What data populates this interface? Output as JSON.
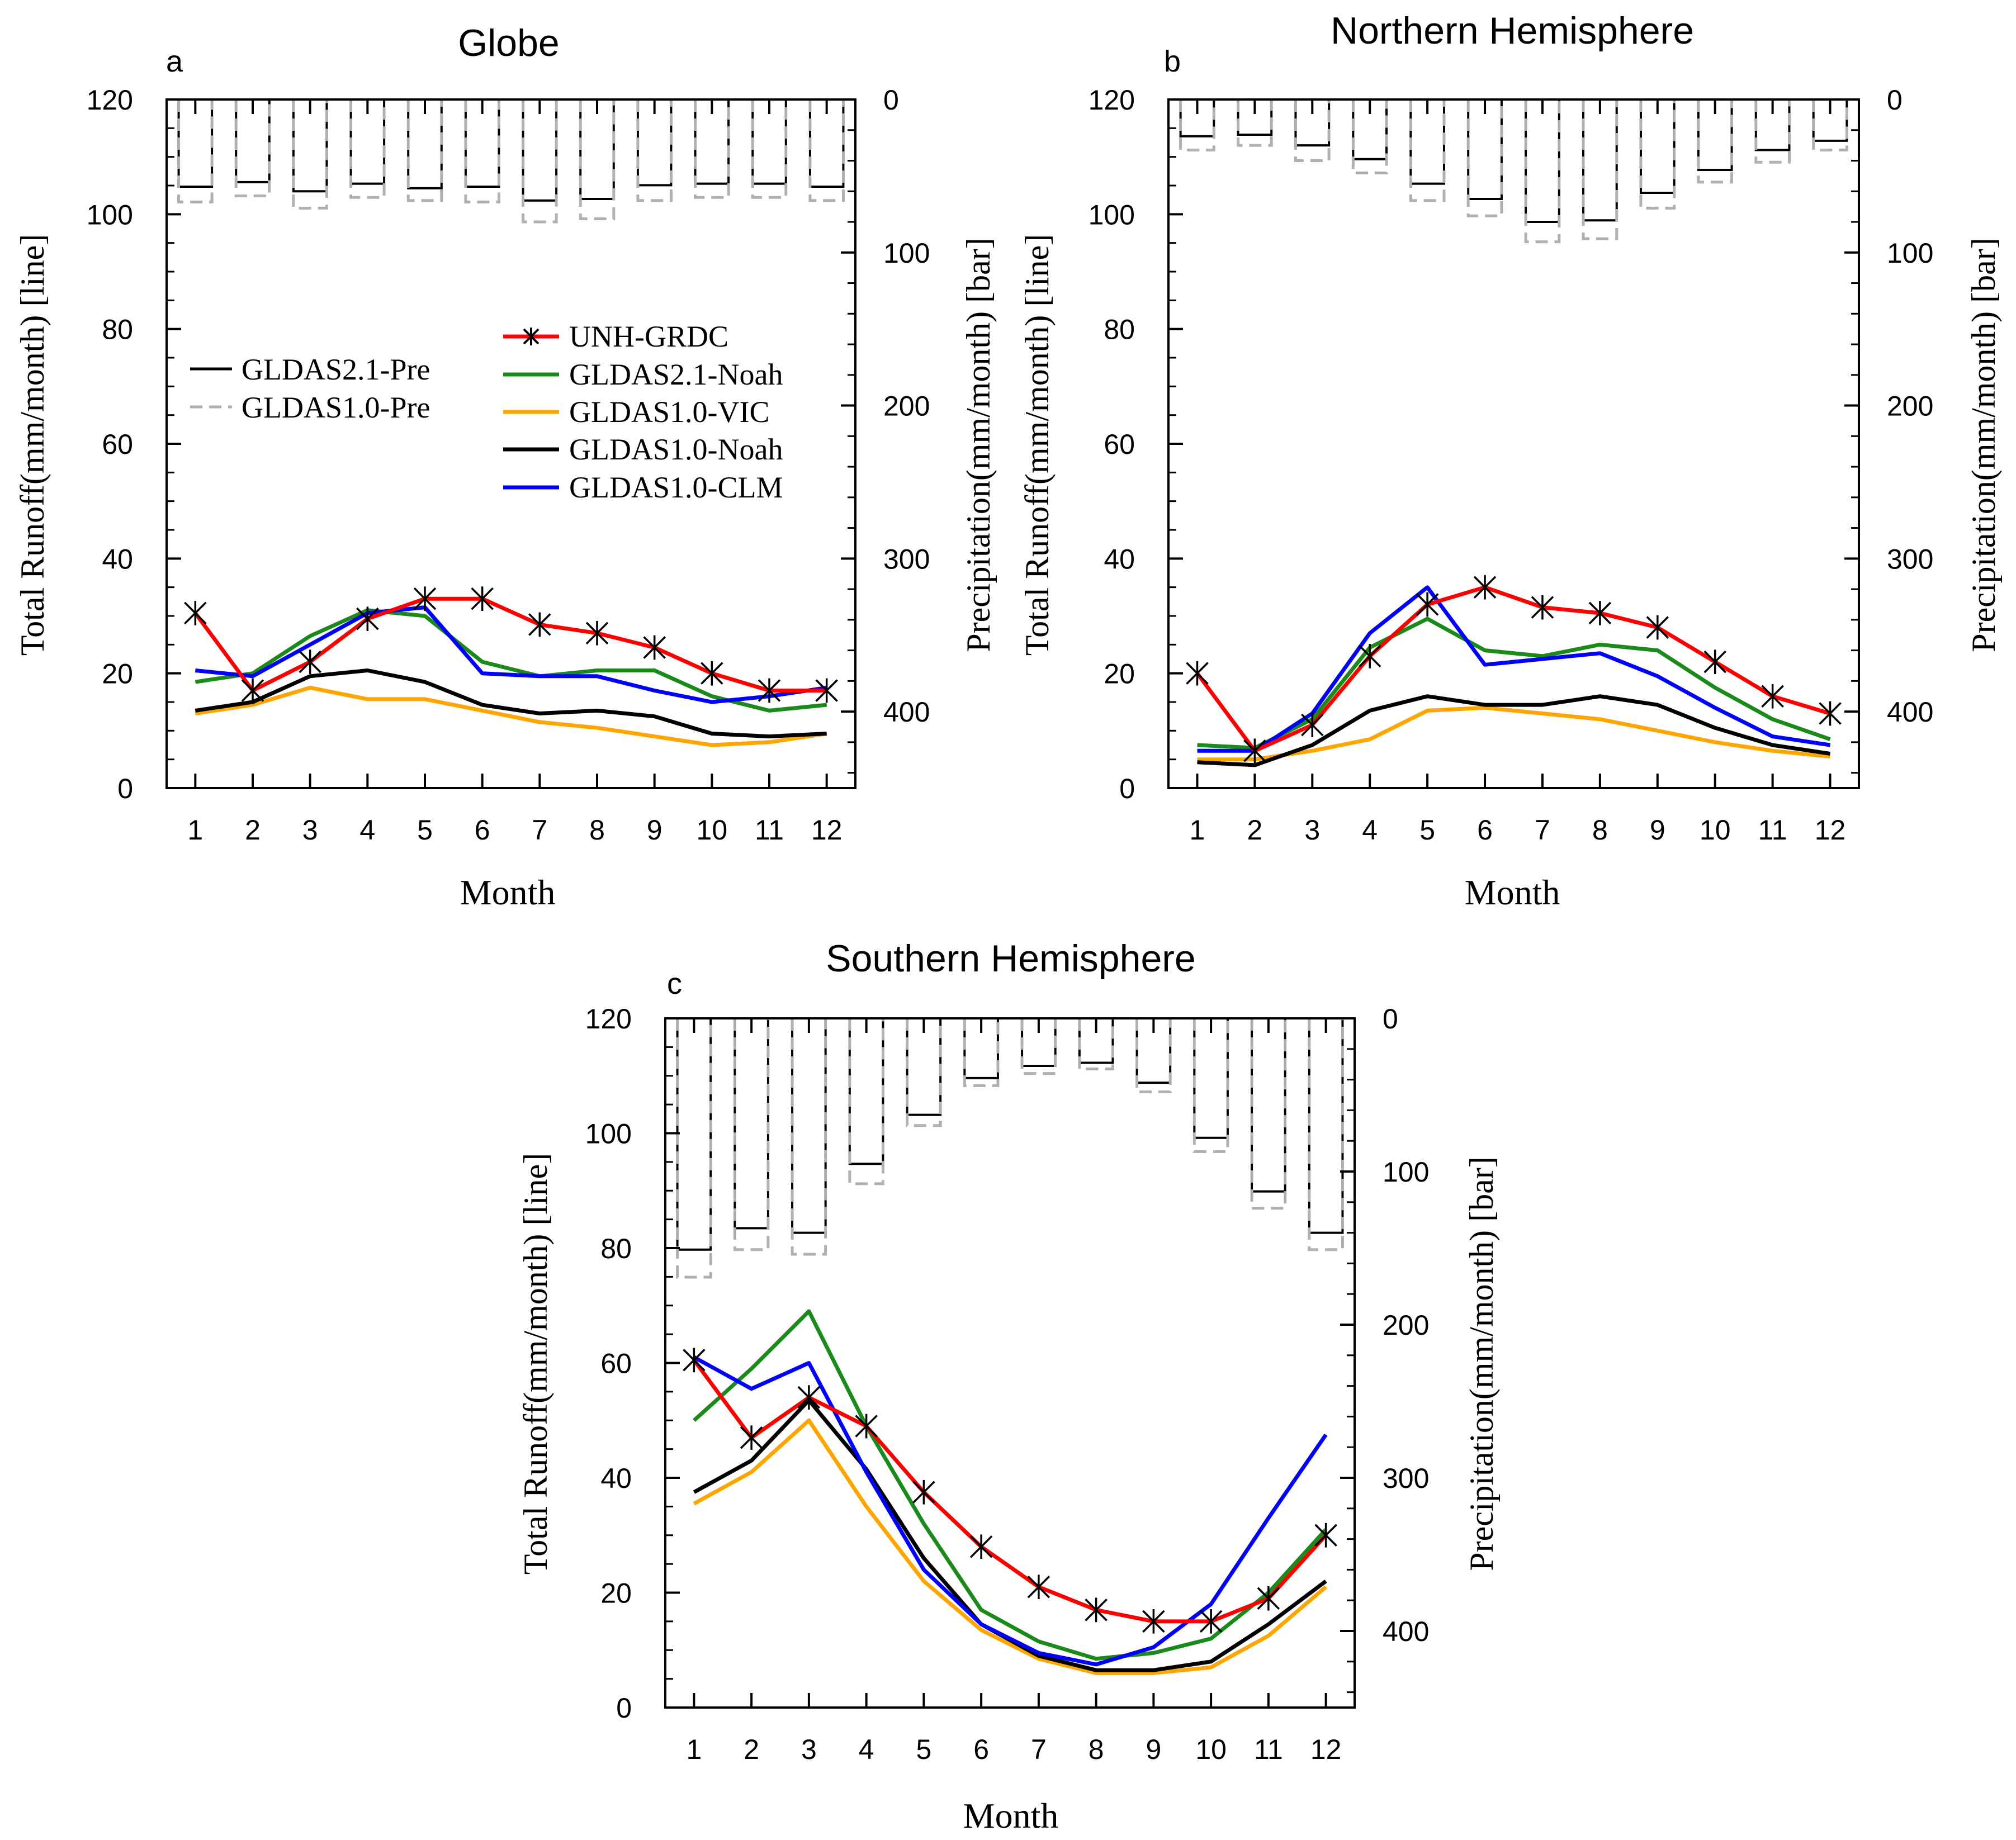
{
  "chart_data": [
    {
      "type": "line",
      "panel_letter": "a",
      "title": "Globe",
      "xlabel": "Month",
      "ylabel": "Total Runoff(mm/month) [line]",
      "y2label": "Precipitation(mm/month) [bar]",
      "x": [
        1,
        2,
        3,
        4,
        5,
        6,
        7,
        8,
        9,
        10,
        11,
        12
      ],
      "xlim": [
        0.5,
        12.5
      ],
      "ylim": [
        0,
        120
      ],
      "y2lim": [
        0,
        450
      ],
      "y2_inverted": true,
      "yticks": [
        0,
        20,
        40,
        60,
        80,
        100,
        120
      ],
      "y2ticks": [
        0,
        100,
        200,
        300,
        400
      ],
      "series": [
        {
          "name": "UNH-GRDC",
          "values": [
            30.5,
            17,
            22,
            29.5,
            33,
            33,
            28.5,
            27,
            24.5,
            20,
            17,
            17
          ],
          "markers": true
        },
        {
          "name": "GLDAS2.1-Noah",
          "values": [
            18.5,
            20,
            26.5,
            31,
            30,
            22,
            19.5,
            20.5,
            20.5,
            16,
            13.5,
            14.5
          ]
        },
        {
          "name": "GLDAS1.0-VIC",
          "values": [
            13,
            14.5,
            17.5,
            15.5,
            15.5,
            13.5,
            11.5,
            10.5,
            9,
            7.5,
            8,
            9.5
          ]
        },
        {
          "name": "GLDAS1.0-Noah",
          "values": [
            13.5,
            15,
            19.5,
            20.5,
            18.5,
            14.5,
            13,
            13.5,
            12.5,
            9.5,
            9,
            9.5
          ]
        },
        {
          "name": "GLDAS1.0-CLM",
          "values": [
            20.5,
            19.5,
            25,
            30.5,
            31.5,
            20,
            19.5,
            19.5,
            17,
            15,
            16,
            17.5
          ]
        }
      ],
      "bar_series": [
        {
          "name": "GLDAS2.1-Pre",
          "values": [
            57,
            54,
            60,
            55,
            58,
            57,
            66,
            65,
            56,
            55,
            55,
            57
          ]
        },
        {
          "name": "GLDAS1.0-Pre",
          "values": [
            67,
            63,
            71,
            64,
            66,
            67,
            80,
            78,
            66,
            64,
            64,
            66
          ]
        }
      ]
    },
    {
      "type": "line",
      "panel_letter": "b",
      "title": "Northern Hemisphere",
      "xlabel": "Month",
      "ylabel": "Total Runoff(mm/month) [line]",
      "y2label": "Precipitation(mm/month) [bar]",
      "x": [
        1,
        2,
        3,
        4,
        5,
        6,
        7,
        8,
        9,
        10,
        11,
        12
      ],
      "xlim": [
        0.5,
        12.5
      ],
      "ylim": [
        0,
        120
      ],
      "y2lim": [
        0,
        450
      ],
      "y2_inverted": true,
      "yticks": [
        0,
        20,
        40,
        60,
        80,
        100,
        120
      ],
      "y2ticks": [
        0,
        100,
        200,
        300,
        400
      ],
      "series": [
        {
          "name": "UNH-GRDC",
          "values": [
            20,
            6.5,
            11,
            23,
            32,
            35,
            31.5,
            30.5,
            28,
            22,
            16,
            13
          ],
          "markers": true
        },
        {
          "name": "GLDAS2.1-Noah",
          "values": [
            7.5,
            7,
            12,
            24.5,
            29.5,
            24,
            23,
            25,
            24,
            17.5,
            12,
            8.5
          ]
        },
        {
          "name": "GLDAS1.0-VIC",
          "values": [
            5,
            5,
            6.5,
            8.5,
            13.5,
            14,
            13,
            12,
            10,
            8,
            6.5,
            5.5
          ]
        },
        {
          "name": "GLDAS1.0-Noah",
          "values": [
            4.5,
            4,
            7.5,
            13.5,
            16,
            14.5,
            14.5,
            16,
            14.5,
            10.5,
            7.5,
            6
          ]
        },
        {
          "name": "GLDAS1.0-CLM",
          "values": [
            6.5,
            6.5,
            13,
            27,
            35,
            21.5,
            22.5,
            23.5,
            19.5,
            14,
            9,
            7.5
          ]
        }
      ],
      "bar_series": [
        {
          "name": "GLDAS2.1-Pre",
          "values": [
            24,
            23,
            30,
            39,
            55,
            65,
            80,
            79,
            61,
            46,
            33,
            27
          ]
        },
        {
          "name": "GLDAS1.0-Pre",
          "values": [
            33,
            30,
            40,
            48,
            66,
            76,
            93,
            91,
            71,
            54,
            41,
            33
          ]
        }
      ]
    },
    {
      "type": "line",
      "panel_letter": "c",
      "title": "Southern Hemisphere",
      "xlabel": "Month",
      "ylabel": "Total Runoff(mm/month) [line]",
      "y2label": "Precipitation(mm/month) [bar]",
      "x": [
        1,
        2,
        3,
        4,
        5,
        6,
        7,
        8,
        9,
        10,
        11,
        12
      ],
      "xlim": [
        0.5,
        12.5
      ],
      "ylim": [
        0,
        120
      ],
      "y2lim": [
        0,
        450
      ],
      "y2_inverted": true,
      "yticks": [
        0,
        20,
        40,
        60,
        80,
        100,
        120
      ],
      "y2ticks": [
        0,
        100,
        200,
        300,
        400
      ],
      "series": [
        {
          "name": "UNH-GRDC",
          "values": [
            60.5,
            47,
            54,
            49,
            37.5,
            28,
            21,
            17,
            15,
            15,
            19,
            30
          ],
          "markers": true
        },
        {
          "name": "GLDAS2.1-Noah",
          "values": [
            50,
            59,
            69,
            49,
            32,
            17,
            11.5,
            8.5,
            9.5,
            12,
            20,
            31
          ]
        },
        {
          "name": "GLDAS1.0-VIC",
          "values": [
            35.5,
            41,
            50,
            35,
            22,
            13.5,
            8.5,
            6,
            6,
            7,
            12.5,
            21
          ]
        },
        {
          "name": "GLDAS1.0-Noah",
          "values": [
            37.5,
            43,
            53.5,
            41.5,
            26,
            14.5,
            9,
            6.5,
            6.5,
            8,
            14.5,
            22
          ]
        },
        {
          "name": "GLDAS1.0-CLM",
          "values": [
            61,
            55.5,
            60,
            41,
            24,
            14.5,
            9.5,
            7.5,
            10.5,
            18,
            33,
            47.5
          ]
        }
      ],
      "bar_series": [
        {
          "name": "GLDAS2.1-Pre",
          "values": [
            151,
            137,
            140,
            95,
            63,
            39,
            31,
            29,
            42,
            78,
            113,
            140
          ]
        },
        {
          "name": "GLDAS1.0-Pre",
          "values": [
            169,
            151,
            154,
            108,
            70,
            44,
            36,
            33,
            48,
            87,
            124,
            151
          ]
        }
      ]
    }
  ],
  "legend": {
    "bars": [
      {
        "label": "GLDAS2.1-Pre",
        "color": "#000000",
        "dash": false
      },
      {
        "label": "GLDAS1.0-Pre",
        "color": "#b0b0b0",
        "dash": true
      }
    ],
    "lines": [
      {
        "label": "UNH-GRDC",
        "color": "#ff0000",
        "marker": true
      },
      {
        "label": "GLDAS2.1-Noah",
        "color": "#1a8a1a"
      },
      {
        "label": "GLDAS1.0-VIC",
        "color": "#ffa500"
      },
      {
        "label": "GLDAS1.0-Noah",
        "color": "#000000"
      },
      {
        "label": "GLDAS1.0-CLM",
        "color": "#0000ff"
      }
    ]
  },
  "colors": {
    "UNH-GRDC": "#ff0000",
    "GLDAS2.1-Noah": "#1a8a1a",
    "GLDAS1.0-VIC": "#ffa500",
    "GLDAS1.0-Noah": "#000000",
    "GLDAS1.0-CLM": "#0000ff",
    "GLDAS2.1-Pre": "#000000",
    "GLDAS1.0-Pre": "#b0b0b0"
  }
}
